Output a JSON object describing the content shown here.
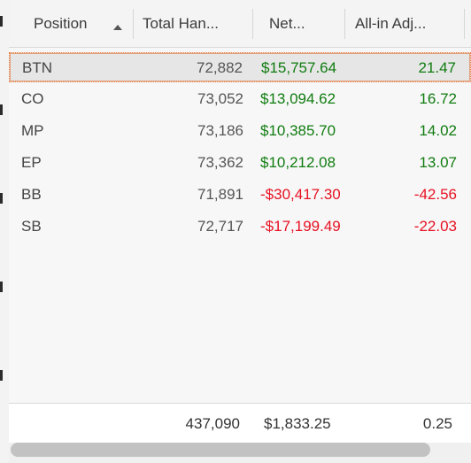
{
  "columns": [
    {
      "key": "position",
      "label": "Position",
      "sorted": "ascending"
    },
    {
      "key": "total_hands",
      "label": "Total Han..."
    },
    {
      "key": "net",
      "label": "Net..."
    },
    {
      "key": "allin_adj",
      "label": "All-in Adj..."
    }
  ],
  "rows": [
    {
      "position": "BTN",
      "total_hands": "72,882",
      "net": "$15,757.64",
      "allin_adj": "21.47",
      "selected": true
    },
    {
      "position": "CO",
      "total_hands": "73,052",
      "net": "$13,094.62",
      "allin_adj": "16.72"
    },
    {
      "position": "MP",
      "total_hands": "73,186",
      "net": "$10,385.70",
      "allin_adj": "14.02"
    },
    {
      "position": "EP",
      "total_hands": "73,362",
      "net": "$10,212.08",
      "allin_adj": "13.07"
    },
    {
      "position": "BB",
      "total_hands": "71,891",
      "net": "-$30,417.30",
      "allin_adj": "-42.56"
    },
    {
      "position": "SB",
      "total_hands": "72,717",
      "net": "-$17,199.49",
      "allin_adj": "-22.03"
    }
  ],
  "totals": {
    "position": "",
    "total_hands": "437,090",
    "net": "$1,833.25",
    "allin_adj": "0.25"
  },
  "colors": {
    "positive": "#107c10",
    "negative": "#e81123",
    "selection_border": "#f07a3c"
  },
  "icons": {
    "sort": "sort-ascending-icon"
  }
}
